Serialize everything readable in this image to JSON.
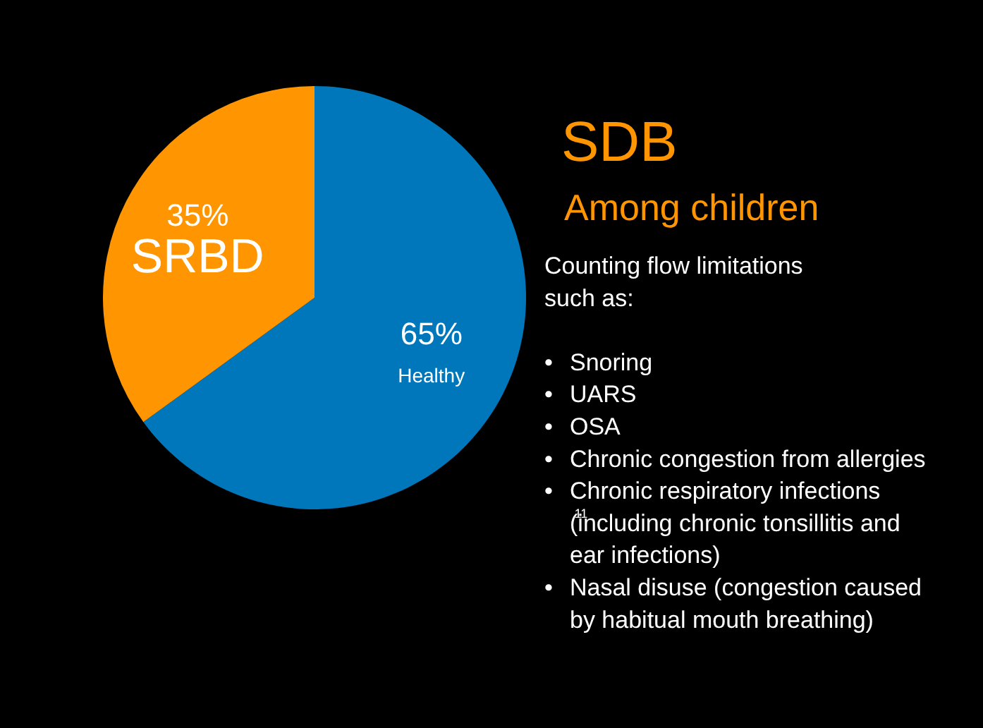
{
  "chart_data": {
    "type": "pie",
    "title": "SDB",
    "subtitle": "Among children",
    "categories": [
      "Healthy",
      "SRBD"
    ],
    "values": [
      65,
      35
    ],
    "colors": [
      "#0077bb",
      "#ff9500"
    ],
    "value_labels": [
      "65%",
      "35%"
    ],
    "annotations": [
      "Counting flow limitations\nsuch as:",
      "• Snoring",
      "• UARS",
      "• OSA",
      "• Chronic congestion from allergies",
      "• Chronic respiratory infections\n(including chronic tonsillitis and\near infections)",
      "• Nasal disuse (congestion caused\nby habitual mouth breathing)",
      {
        "text": "11"
      }
    ]
  }
}
